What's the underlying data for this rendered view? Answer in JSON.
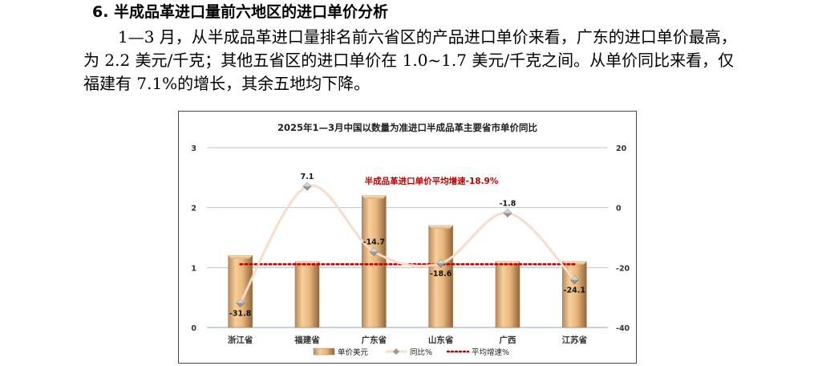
{
  "section": {
    "heading": "6. 半成品革进口量前六地区的进口单价分析",
    "paragraph": "1—3 月，从半成品革进口量排名前六省区的产品进口单价来看，广东的进口单价最高，为 2.2 美元/千克；其他五省区的进口单价在 1.0~1.7 美元/千克之间。从单价同比来看，仅福建有 7.1%的增长，其余五地均下降。"
  },
  "chart_data": {
    "type": "bar",
    "title": "2025年1—3月中国以数量为准进口半成品革主要省市单价同比",
    "categories": [
      "浙江省",
      "福建省",
      "广东省",
      "山东省",
      "广西",
      "江苏省"
    ],
    "series": [
      {
        "name": "单价美元",
        "type": "bar",
        "axis": "left",
        "values": [
          1.2,
          1.1,
          2.2,
          1.7,
          1.1,
          1.1
        ],
        "color": "#e8b77a"
      },
      {
        "name": "同比%",
        "type": "line",
        "axis": "right",
        "values": [
          -31.8,
          7.1,
          -14.7,
          -18.6,
          -1.8,
          -24.1
        ],
        "labels": [
          "-31.8",
          "7.1",
          "-14.7",
          "-18.6",
          "-1.8",
          "-24.1"
        ],
        "color": "#f9dcc8"
      },
      {
        "name": "平均增速%",
        "type": "line",
        "axis": "right",
        "values": [
          -18.9,
          -18.9,
          -18.9,
          -18.9,
          -18.9,
          -18.9
        ],
        "color": "#c00000",
        "style": "dotted"
      }
    ],
    "ylim_left": [
      0,
      3
    ],
    "ylim_right": [
      -40,
      20
    ],
    "yticks_left": [
      "0",
      "1",
      "2",
      "3"
    ],
    "yticks_right": [
      "-40",
      "-20",
      "0",
      "20"
    ],
    "annotation": "半成品革进口单价平均增速-18.9%",
    "grid": true,
    "legend": "bottom"
  }
}
